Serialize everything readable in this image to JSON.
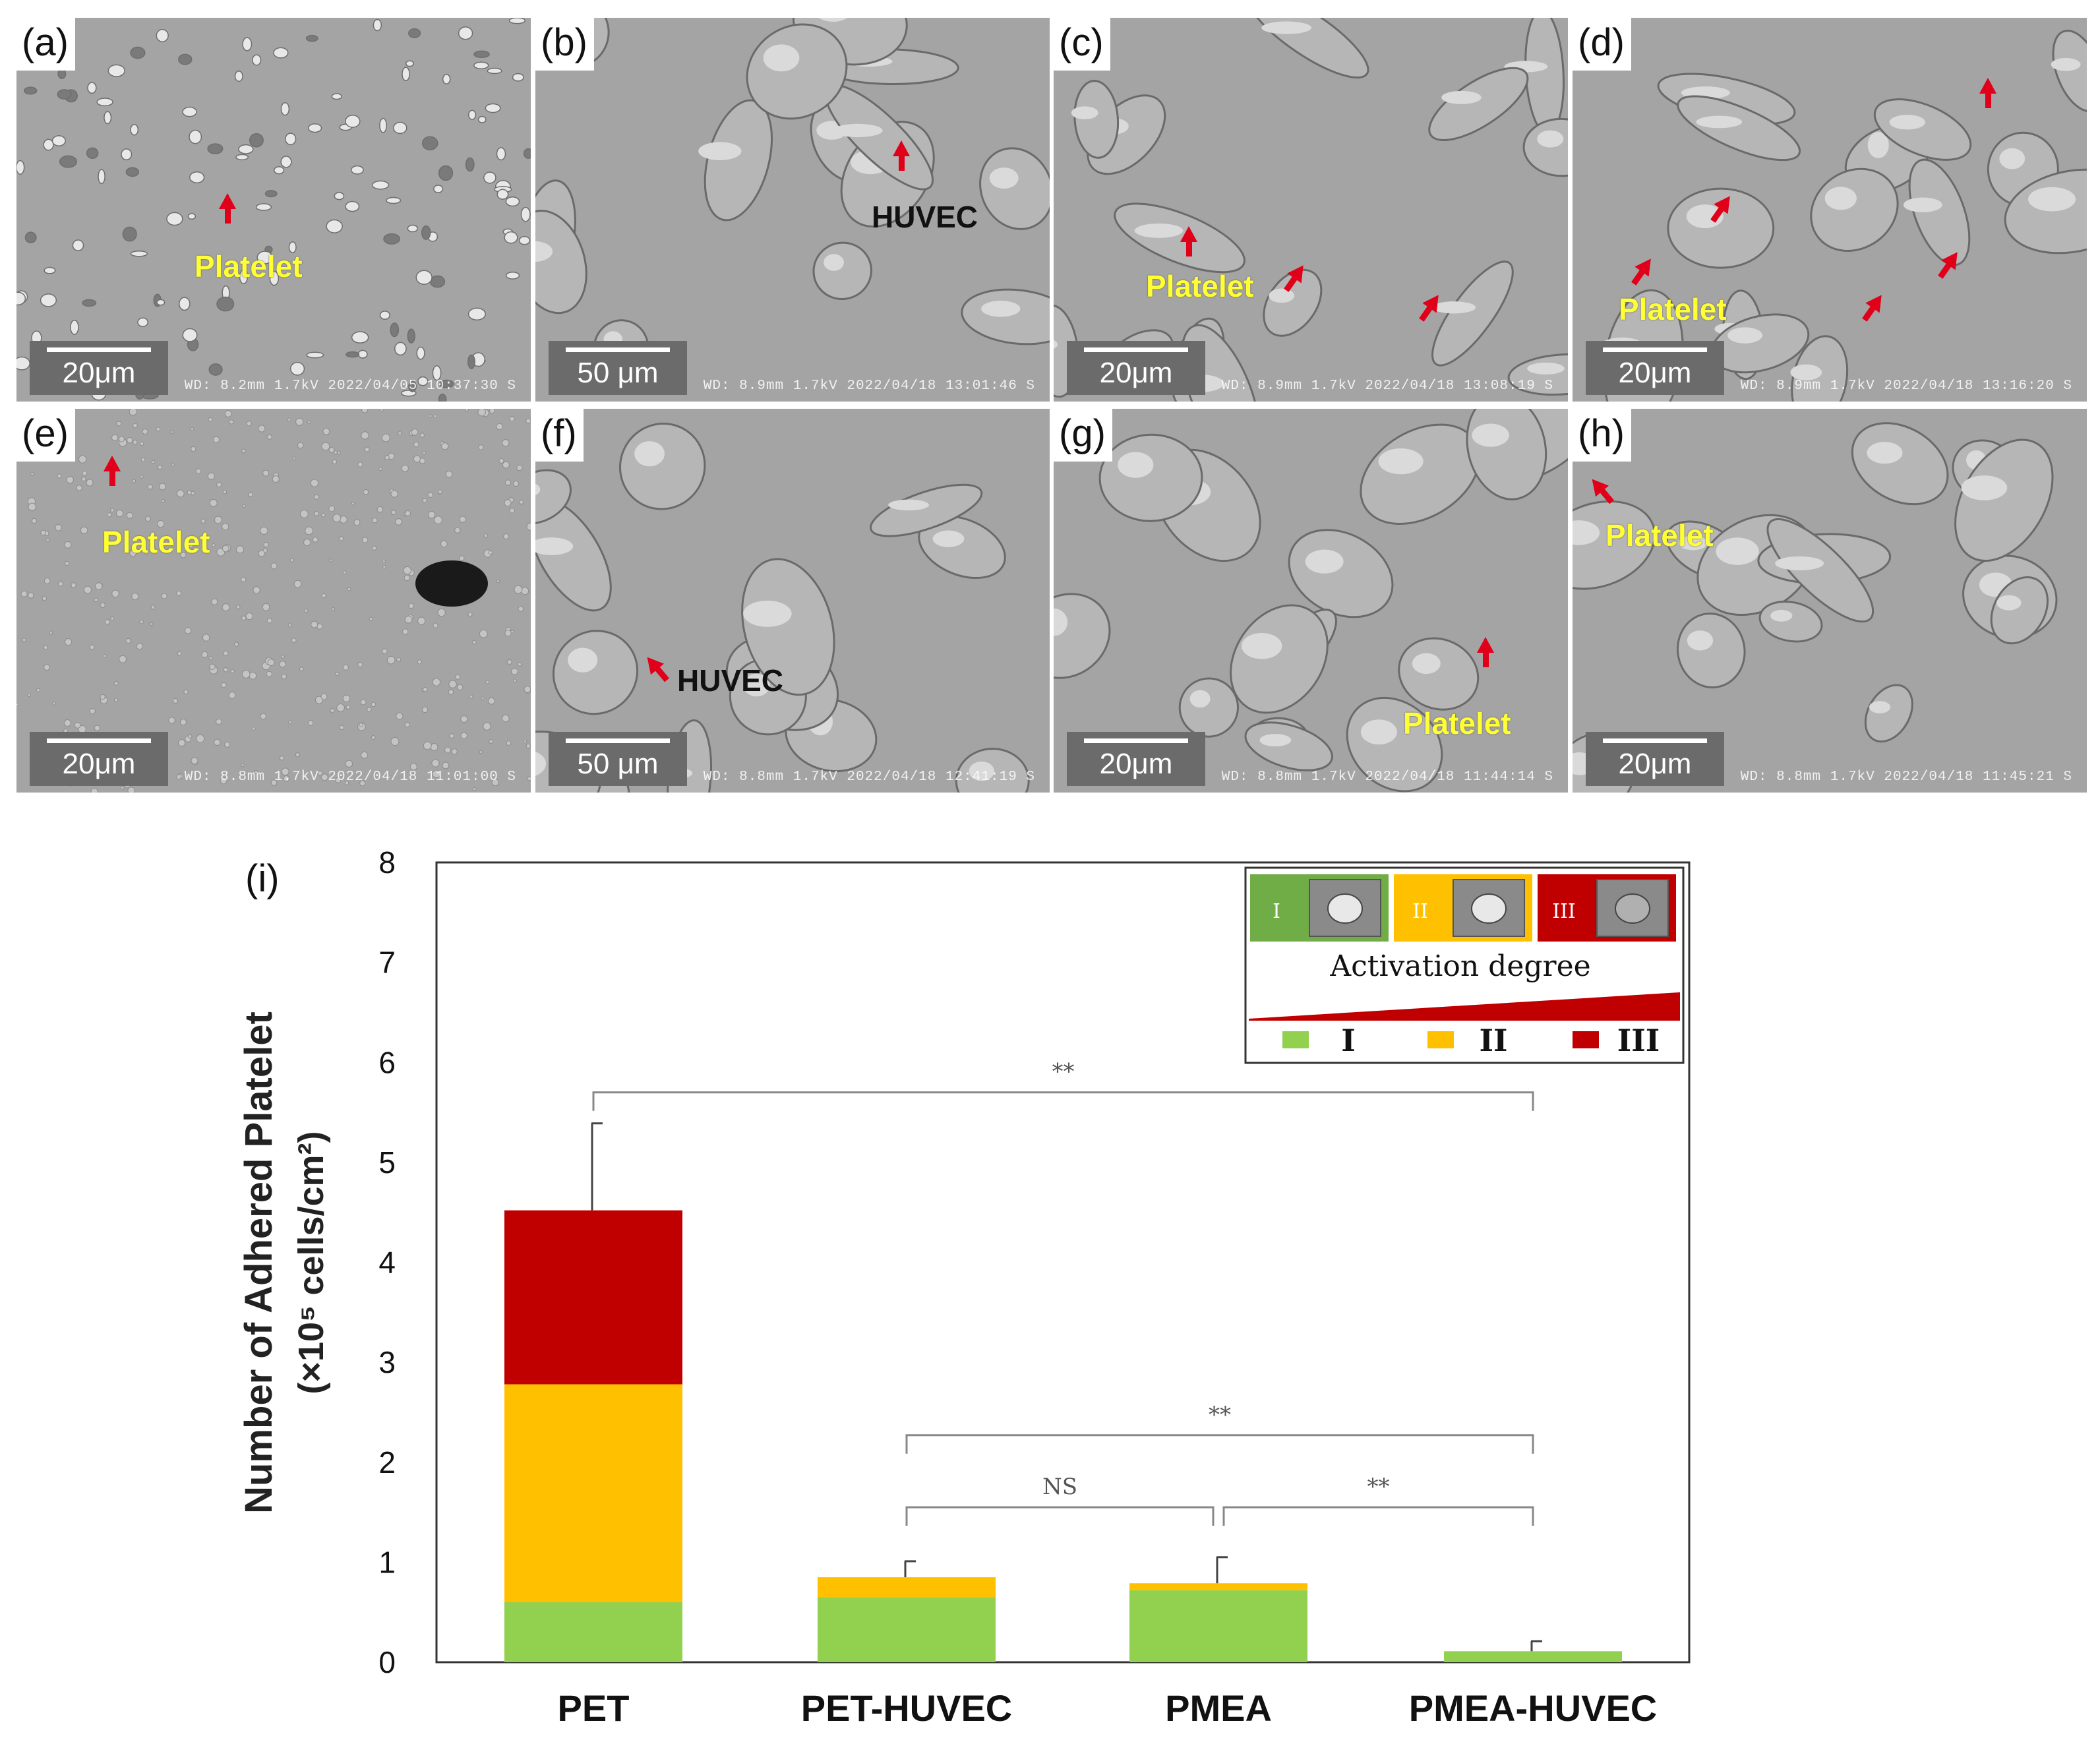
{
  "micrographs": [
    {
      "label": "(a)",
      "scale": "20μm",
      "meta": "WD: 8.2mm 1.7kV 2022/04/05 10:37:30 S",
      "annotations": [
        {
          "text": "Platelet",
          "color": "yellow"
        }
      ],
      "arrows": 1,
      "texture": "platelets"
    },
    {
      "label": "(b)",
      "scale": "50 μm",
      "meta": "WD: 8.9mm 1.7kV 2022/04/18 13:01:46 S",
      "annotations": [
        {
          "text": "HUVEC",
          "color": "black"
        }
      ],
      "arrows": 1,
      "texture": "cells"
    },
    {
      "label": "(c)",
      "scale": "20μm",
      "meta": "WD: 8.9mm 1.7kV 2022/04/18 13:08:19 S",
      "annotations": [
        {
          "text": "Platelet",
          "color": "yellow"
        }
      ],
      "arrows": 3,
      "texture": "cells"
    },
    {
      "label": "(d)",
      "scale": "20μm",
      "meta": "WD: 8.9mm 1.7kV 2022/04/18 13:16:20 S",
      "annotations": [
        {
          "text": "Platelet",
          "color": "yellow"
        }
      ],
      "arrows": 5,
      "texture": "cells"
    },
    {
      "label": "(e)",
      "scale": "20μm",
      "meta": "WD: 8.8mm 1.7kV 2022/04/18 11:01:00 S",
      "annotations": [
        {
          "text": "Platelet",
          "color": "yellow"
        }
      ],
      "arrows": 1,
      "texture": "dots"
    },
    {
      "label": "(f)",
      "scale": "50 μm",
      "meta": "WD: 8.8mm 1.7kV 2022/04/18 12:41:19 S",
      "annotations": [
        {
          "text": "HUVEC",
          "color": "black"
        }
      ],
      "arrows": 1,
      "texture": "cells"
    },
    {
      "label": "(g)",
      "scale": "20μm",
      "meta": "WD: 8.8mm 1.7kV 2022/04/18 11:44:14 S",
      "annotations": [
        {
          "text": "Platelet",
          "color": "yellow"
        }
      ],
      "arrows": 1,
      "texture": "cells"
    },
    {
      "label": "(h)",
      "scale": "20μm",
      "meta": "WD: 8.8mm 1.7kV 2022/04/18 11:45:21 S",
      "annotations": [
        {
          "text": "Platelet",
          "color": "yellow"
        }
      ],
      "arrows": 1,
      "texture": "cells"
    }
  ],
  "chart_data": {
    "type": "bar",
    "stacked": true,
    "panel_label": "(i)",
    "ylabel_line1": "Number of Adhered Platelet",
    "ylabel_line2": "(×10⁵ cells/cm²)",
    "ylim": [
      0,
      8
    ],
    "yticks": [
      "0",
      "1",
      "2",
      "3",
      "4",
      "5",
      "6",
      "7",
      "8"
    ],
    "categories": [
      "PET",
      "PET-HUVEC",
      "PMEA",
      "PMEA-HUVEC"
    ],
    "series": [
      {
        "name": "I",
        "color": "#92d050",
        "values": [
          0.6,
          0.65,
          0.72,
          0.11
        ]
      },
      {
        "name": "II",
        "color": "#ffc000",
        "values": [
          2.18,
          0.2,
          0.07,
          0.0
        ]
      },
      {
        "name": "III",
        "color": "#c00000",
        "values": [
          1.74,
          0.0,
          0.0,
          0.0
        ]
      }
    ],
    "error_bars": [
      0.87,
      0.16,
      0.26,
      0.1
    ],
    "significance": [
      {
        "from": 0,
        "to": 3,
        "label": "**",
        "y": 5.7
      },
      {
        "from": 1,
        "to": 3,
        "label": "**",
        "y": 2.27
      },
      {
        "from": 1,
        "to": 2,
        "label": "NS",
        "y": 1.55
      },
      {
        "from": 2,
        "to": 3,
        "label": "**",
        "y": 1.55
      }
    ],
    "legend": {
      "position": "top-right",
      "title": "Activation degree",
      "stage_badges": [
        {
          "numeral": "I",
          "color": "#70ad47"
        },
        {
          "numeral": "II",
          "color": "#ffc000"
        },
        {
          "numeral": "III",
          "color": "#c00000"
        }
      ],
      "entries": [
        "I",
        "II",
        "III"
      ]
    }
  }
}
